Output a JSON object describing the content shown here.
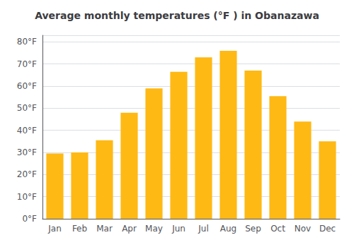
{
  "chart_data": {
    "type": "bar",
    "title": "Average monthly temperatures (°F ) in Obanazawa",
    "categories": [
      "Jan",
      "Feb",
      "Mar",
      "Apr",
      "May",
      "Jun",
      "Jul",
      "Aug",
      "Sep",
      "Oct",
      "Nov",
      "Dec"
    ],
    "values": [
      29.5,
      30.0,
      35.5,
      48.0,
      59.0,
      66.5,
      73.0,
      76.0,
      67.0,
      55.5,
      44.0,
      35.0
    ],
    "color": "#FFB914",
    "ylim": [
      0,
      83
    ],
    "yticks": [
      {
        "value": 0,
        "label": "0°F"
      },
      {
        "value": 10,
        "label": "10°F"
      },
      {
        "value": 20,
        "label": "20°F"
      },
      {
        "value": 30,
        "label": "30°F"
      },
      {
        "value": 40,
        "label": "40°F"
      },
      {
        "value": 50,
        "label": "50°F"
      },
      {
        "value": 60,
        "label": "60°F"
      },
      {
        "value": 70,
        "label": "70°F"
      },
      {
        "value": 80,
        "label": "80°F"
      }
    ],
    "grid": true
  }
}
